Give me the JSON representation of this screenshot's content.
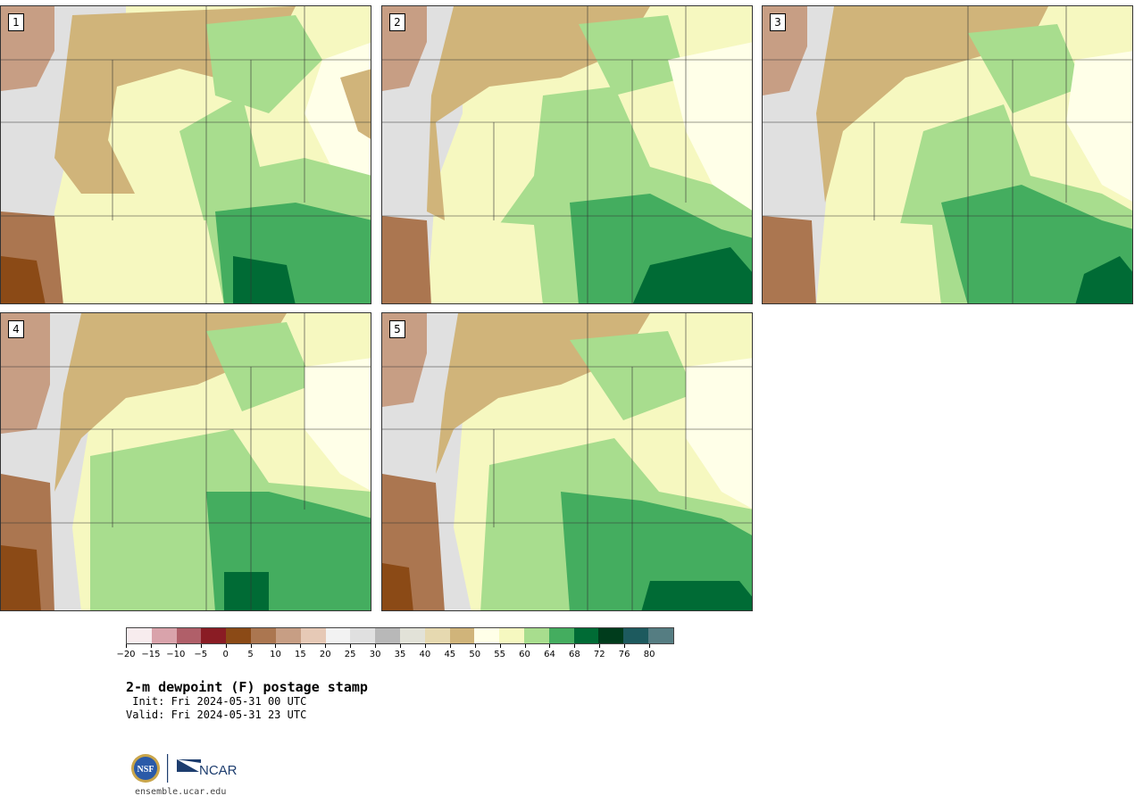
{
  "panels": [
    {
      "label": "1"
    },
    {
      "label": "2"
    },
    {
      "label": "3"
    },
    {
      "label": "4"
    },
    {
      "label": "5"
    }
  ],
  "colorbar": {
    "colors": [
      "#f7ecee",
      "#d9a3ab",
      "#b05f69",
      "#8a1c24",
      "#8b4a16",
      "#ab7650",
      "#c79e84",
      "#e6c9b6",
      "#f2f2f2",
      "#e0e0e0",
      "#b8b8b8",
      "#e2e2d8",
      "#e6d9b0",
      "#d0b47a",
      "#ffffe8",
      "#f6f8c0",
      "#a8dd8e",
      "#44ad5f",
      "#006b35",
      "#003c1c",
      "#1d5a5e",
      "#557d82"
    ],
    "ticks": [
      "−20",
      "−15",
      "−10",
      "−5",
      "0",
      "5",
      "10",
      "15",
      "20",
      "25",
      "30",
      "35",
      "40",
      "45",
      "50",
      "55",
      "60",
      "64",
      "68",
      "72",
      "76",
      "80"
    ]
  },
  "title": "2-m dewpoint (F) postage stamp",
  "init": " Init: Fri 2024-05-31 00 UTC",
  "valid": "Valid: Fri 2024-05-31 23 UTC",
  "logo": {
    "left": "NSF",
    "right": "NCAR"
  },
  "url": "ensemble.ucar.edu"
}
